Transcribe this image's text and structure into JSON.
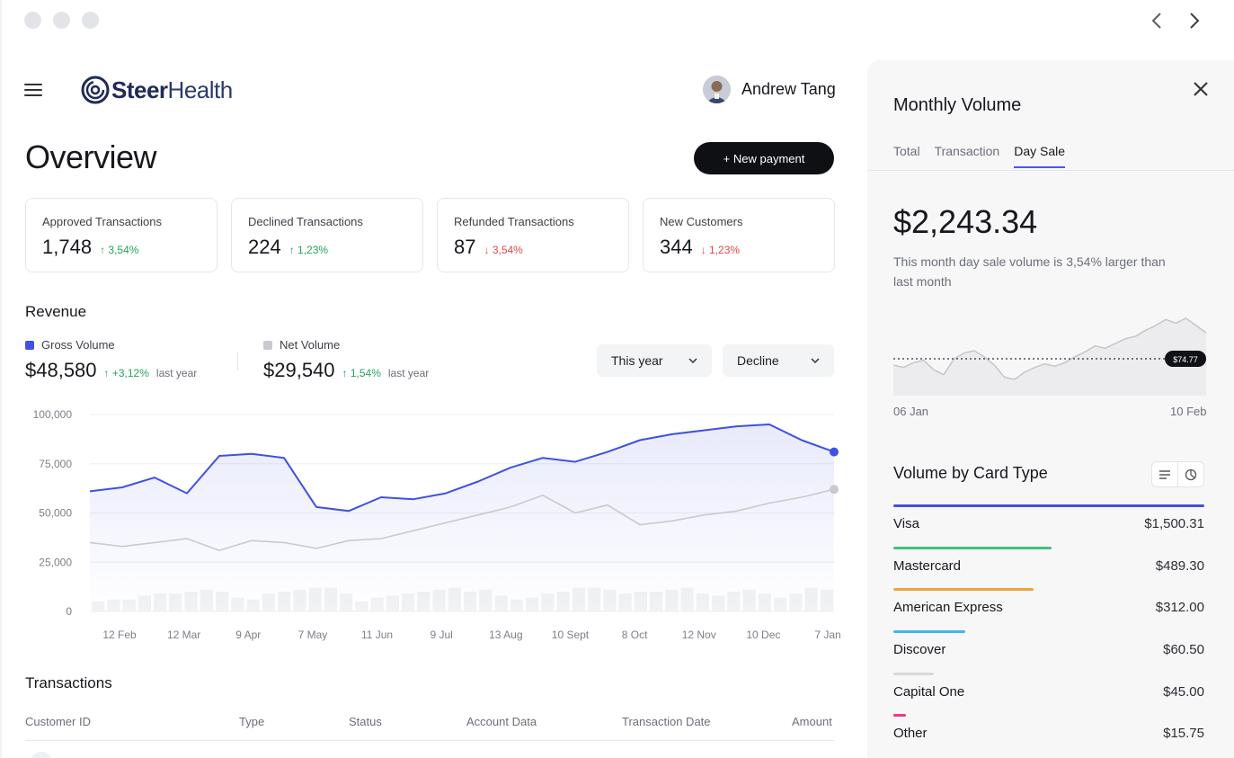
{
  "header": {
    "logo_bold": "Steer",
    "logo_light": "Health",
    "user_name": "Andrew Tang"
  },
  "overview": {
    "title": "Overview",
    "new_payment_label": "+ New payment"
  },
  "stats": [
    {
      "label": "Approved Transactions",
      "value": "1,748",
      "change": "↑ 3,54%",
      "trend": "up"
    },
    {
      "label": "Declined Transactions",
      "value": "224",
      "change": "↑ 1,23%",
      "trend": "up"
    },
    {
      "label": "Refunded Transactions",
      "value": "87",
      "change": "↓ 3,54%",
      "trend": "down"
    },
    {
      "label": "New Customers",
      "value": "344",
      "change": "↓ 1,23%",
      "trend": "down"
    }
  ],
  "revenue": {
    "title": "Revenue",
    "gross": {
      "label": "Gross Volume",
      "value": "$48,580",
      "change": "↑ +3,12%",
      "suffix": "last year",
      "color": "#3f51e0"
    },
    "net": {
      "label": "Net Volume",
      "value": "$29,540",
      "change": "↑ 1,54%",
      "suffix": "last year",
      "color": "#c9cacf"
    },
    "period_select": "This year",
    "filter_select": "Decline"
  },
  "chart_data": {
    "type": "line",
    "y_ticks": [
      "100,000",
      "75,000",
      "50,000",
      "25,000",
      "0"
    ],
    "ylim": [
      0,
      100000
    ],
    "x_ticks": [
      "12 Feb",
      "12 Mar",
      "9 Apr",
      "7 May",
      "11 Jun",
      "9 Jul",
      "13 Aug",
      "10 Sept",
      "8 Oct",
      "12 Nov",
      "10 Dec",
      "7 Jan"
    ],
    "series": [
      {
        "name": "Gross Volume",
        "color": "#3f51e0",
        "values": [
          61000,
          63000,
          68000,
          60000,
          79000,
          80000,
          78000,
          53000,
          51000,
          58000,
          57000,
          60000,
          66000,
          73000,
          78000,
          76000,
          81000,
          87000,
          90000,
          92000,
          94000,
          95000,
          87000,
          81000
        ]
      },
      {
        "name": "Net Volume",
        "color": "#c9cacf",
        "values": [
          35000,
          33000,
          35000,
          37000,
          31000,
          36000,
          35000,
          32000,
          36000,
          37000,
          41000,
          45000,
          49000,
          53000,
          59000,
          50000,
          54000,
          44000,
          46000,
          49000,
          51000,
          55000,
          58000,
          62000
        ]
      }
    ],
    "bars": [
      5,
      6,
      6,
      8,
      9,
      9,
      10,
      11,
      10,
      7,
      6,
      9,
      10,
      11,
      12,
      12,
      9,
      5,
      7,
      8,
      9,
      10,
      11,
      12,
      10,
      11,
      8,
      6,
      7,
      9,
      10,
      12,
      12,
      11,
      9,
      10,
      10,
      11,
      12,
      9,
      8,
      10,
      11,
      9,
      7,
      9,
      12,
      11
    ]
  },
  "transactions": {
    "title": "Transactions",
    "columns": [
      "Customer ID",
      "Type",
      "Status",
      "Account Data",
      "Transaction Date",
      "Amount"
    ]
  },
  "panel": {
    "title": "Monthly Volume",
    "tabs": [
      "Total",
      "Transaction",
      "Day Sale"
    ],
    "active_tab": "Day Sale",
    "amount": "$2,243.34",
    "description": "This month day sale volume is 3,54% larger than last month",
    "mini_chart": {
      "marker_label": "$74.77",
      "values": [
        68,
        66,
        70,
        72,
        64,
        60,
        73,
        78,
        80,
        75,
        68,
        58,
        56,
        62,
        66,
        69,
        67,
        70,
        75,
        79,
        84,
        82,
        86,
        90,
        92,
        97,
        101,
        106,
        103,
        107,
        101,
        95
      ],
      "start_label": "06 Jan",
      "end_label": "10 Feb"
    },
    "card_types_title": "Volume by Card Type",
    "card_types": [
      {
        "name": "Visa",
        "amount": "$1,500.31",
        "color": "#3f51e0",
        "share": 1.0
      },
      {
        "name": "Mastercard",
        "amount": "$489.30",
        "color": "#3fc07a",
        "share": 0.51
      },
      {
        "name": "American Express",
        "amount": "$312.00",
        "color": "#f4a23c",
        "share": 0.45
      },
      {
        "name": "Discover",
        "amount": "$60.50",
        "color": "#3fb6f0",
        "share": 0.23
      },
      {
        "name": "Capital One",
        "amount": "$45.00",
        "color": "#d9d9dc",
        "share": 0.13
      },
      {
        "name": "Other",
        "amount": "$15.75",
        "color": "#e83a8c",
        "share": 0.04
      }
    ]
  }
}
